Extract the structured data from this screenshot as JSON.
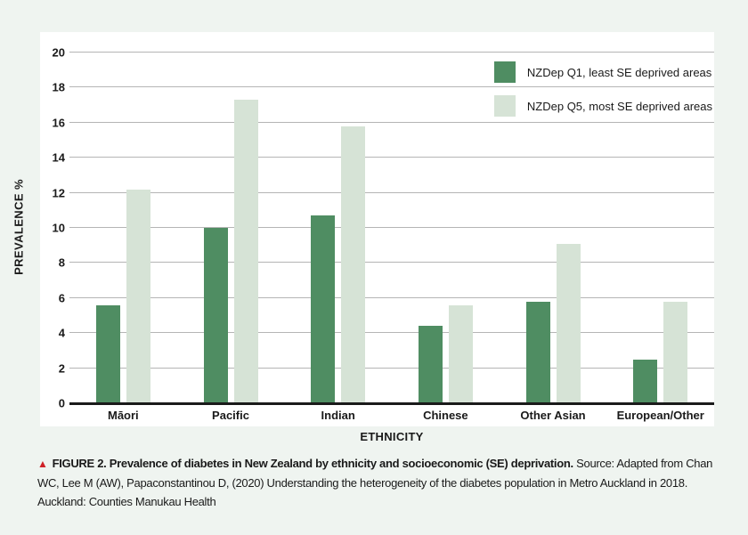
{
  "colors": {
    "page_background": "#eff4f0",
    "panel_background": "#ffffff",
    "gridline": "#b5b5b5",
    "axis": "#1a1a1a",
    "text": "#1a1a1a",
    "figure_marker_red": "#cf2127",
    "series_q1_green": "#4f8d62",
    "series_q5_light_green": "#d6e3d6"
  },
  "chart_data": {
    "type": "bar",
    "categories": [
      "Māori",
      "Pacific",
      "Indian",
      "Chinese",
      "Other Asian",
      "European/Other"
    ],
    "series": [
      {
        "name": "NZDep Q1, least SE deprived areas",
        "color": "#4f8d62",
        "values": [
          5.6,
          10.0,
          10.7,
          4.4,
          5.8,
          2.5
        ]
      },
      {
        "name": "NZDep Q5, most SE deprived areas",
        "color": "#d6e3d6",
        "values": [
          12.2,
          17.3,
          15.8,
          5.6,
          9.1,
          5.8
        ]
      }
    ],
    "title": "",
    "xlabel": "ETHNICITY",
    "ylabel": "PREVALENCE %",
    "ylim": [
      0,
      20
    ],
    "y_ticks": [
      0,
      2,
      4,
      6,
      8,
      10,
      12,
      14,
      16,
      18,
      20
    ],
    "grid": true,
    "legend_position": "top-right"
  },
  "caption": {
    "marker": "▲",
    "bold": "FIGURE 2. Prevalence of diabetes in New Zealand by ethnicity and socioeconomic (SE) deprivation.",
    "regular": "Source: Adapted from Chan WC, Lee M (AW), Papaconstantinou D, (2020) Understanding the heterogeneity of the diabetes population in Metro Auckland in 2018. Auckland: Counties Manukau Health"
  }
}
